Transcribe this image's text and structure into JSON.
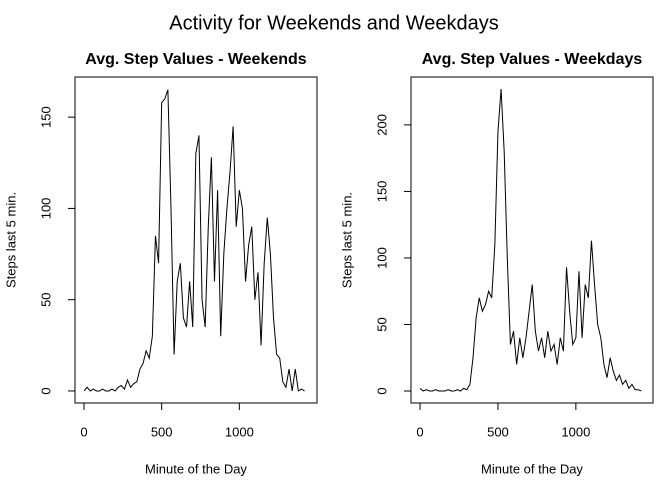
{
  "title": "Activity for Weekends and Weekdays",
  "chart_data": [
    {
      "type": "line",
      "title": "Avg. Step Values - Weekends",
      "xlabel": "Minute of the Day",
      "ylabel": "Steps last 5 min.",
      "x": [
        0,
        20,
        40,
        60,
        80,
        100,
        120,
        140,
        160,
        180,
        200,
        220,
        240,
        260,
        280,
        300,
        320,
        340,
        360,
        380,
        400,
        420,
        440,
        460,
        480,
        500,
        520,
        540,
        560,
        580,
        600,
        620,
        640,
        660,
        680,
        700,
        720,
        740,
        760,
        780,
        800,
        820,
        840,
        860,
        880,
        900,
        920,
        940,
        960,
        980,
        1000,
        1020,
        1040,
        1060,
        1080,
        1100,
        1120,
        1140,
        1160,
        1180,
        1200,
        1220,
        1240,
        1260,
        1280,
        1300,
        1320,
        1340,
        1360,
        1380,
        1400,
        1420
      ],
      "series": [
        {
          "name": "Weekends",
          "color": "#000000",
          "values": [
            0,
            2,
            0,
            1,
            0,
            0,
            1,
            0,
            0,
            1,
            0,
            2,
            3,
            1,
            6,
            2,
            4,
            5,
            12,
            15,
            22,
            18,
            30,
            85,
            70,
            158,
            160,
            165,
            100,
            20,
            60,
            70,
            40,
            35,
            60,
            35,
            130,
            140,
            50,
            35,
            90,
            128,
            60,
            110,
            30,
            75,
            100,
            120,
            145,
            90,
            110,
            100,
            60,
            80,
            90,
            50,
            65,
            25,
            70,
            95,
            75,
            40,
            20,
            18,
            5,
            2,
            12,
            0,
            12,
            0,
            1,
            0
          ]
        }
      ],
      "xlim": [
        -58,
        1500
      ],
      "ylim": [
        -6.6,
        172
      ],
      "xticks": [
        0,
        500,
        1000
      ],
      "yticks": [
        0,
        50,
        100,
        150
      ],
      "grid": false
    },
    {
      "type": "line",
      "title": "Avg. Step Values - Weekdays",
      "xlabel": "Minute of the Day",
      "ylabel": "Steps last 5 min.",
      "x": [
        0,
        20,
        40,
        60,
        80,
        100,
        120,
        140,
        160,
        180,
        200,
        220,
        240,
        260,
        280,
        300,
        320,
        340,
        360,
        380,
        400,
        420,
        440,
        460,
        480,
        500,
        520,
        540,
        560,
        580,
        600,
        620,
        640,
        660,
        680,
        700,
        720,
        740,
        760,
        780,
        800,
        820,
        840,
        860,
        880,
        900,
        920,
        940,
        960,
        980,
        1000,
        1020,
        1040,
        1060,
        1080,
        1100,
        1120,
        1140,
        1160,
        1180,
        1200,
        1220,
        1240,
        1260,
        1280,
        1300,
        1320,
        1340,
        1360,
        1380,
        1400,
        1420
      ],
      "series": [
        {
          "name": "Weekdays",
          "color": "#000000",
          "values": [
            2,
            0,
            1,
            0,
            0,
            1,
            0,
            0,
            0,
            1,
            0,
            0,
            1,
            0,
            2,
            1,
            5,
            25,
            55,
            70,
            60,
            65,
            75,
            70,
            110,
            195,
            227,
            180,
            100,
            35,
            45,
            20,
            40,
            25,
            40,
            60,
            80,
            45,
            30,
            40,
            25,
            45,
            30,
            35,
            20,
            40,
            30,
            93,
            60,
            35,
            40,
            90,
            40,
            80,
            70,
            113,
            80,
            50,
            40,
            20,
            10,
            25,
            15,
            8,
            12,
            5,
            8,
            2,
            5,
            1,
            1,
            0
          ]
        }
      ],
      "xlim": [
        -58,
        1495
      ],
      "ylim": [
        -9,
        236
      ],
      "xticks": [
        0,
        500,
        1000
      ],
      "yticks": [
        0,
        50,
        100,
        150,
        200
      ],
      "grid": false
    }
  ]
}
